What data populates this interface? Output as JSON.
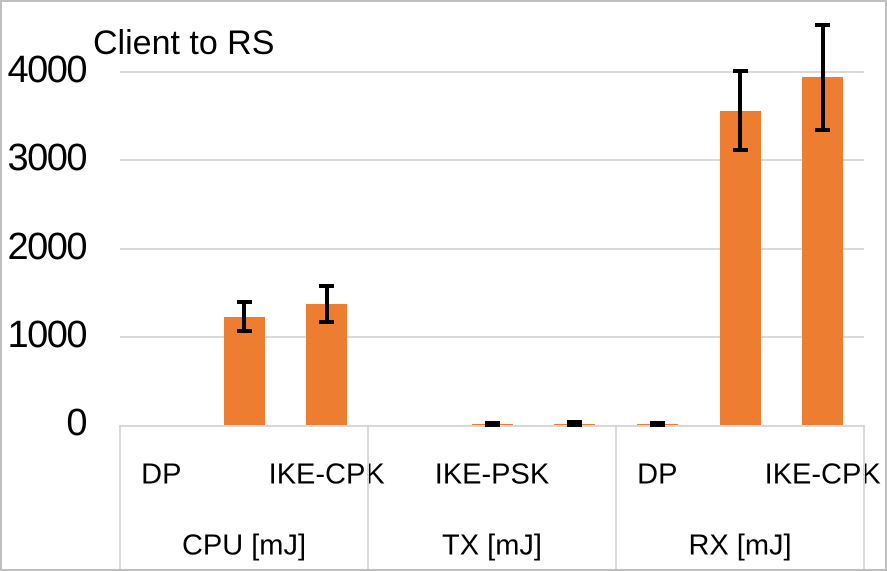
{
  "chart_data": {
    "type": "bar",
    "title": "Client to RS",
    "xlabel": "",
    "ylabel": "",
    "unit": "mJ",
    "ylim": [
      0,
      4600
    ],
    "yticks": [
      0,
      1000,
      2000,
      3000,
      4000
    ],
    "grid": true,
    "legend": false,
    "axis_label_interval": 2,
    "groups": [
      {
        "label": "CPU [mJ]",
        "items": [
          {
            "category": "DP",
            "value": 0,
            "error": 0,
            "label_visible": true
          },
          {
            "category": "IKE-PSK",
            "value": 1230,
            "error": 165,
            "label_visible": false
          },
          {
            "category": "IKE-CPK",
            "value": 1370,
            "error": 205,
            "label_visible": true
          }
        ]
      },
      {
        "label": "TX [mJ]",
        "items": [
          {
            "category": "DP",
            "value": 0,
            "error": 0,
            "label_visible": false
          },
          {
            "category": "IKE-PSK",
            "value": 10,
            "error": 15,
            "label_visible": true
          },
          {
            "category": "IKE-CPK",
            "value": 15,
            "error": 15,
            "label_visible": false
          }
        ]
      },
      {
        "label": "RX [mJ]",
        "items": [
          {
            "category": "DP",
            "value": 15,
            "error": 12,
            "label_visible": true
          },
          {
            "category": "IKE-PSK",
            "value": 3565,
            "error": 445,
            "label_visible": false
          },
          {
            "category": "IKE-CPK",
            "value": 3940,
            "error": 595,
            "label_visible": true
          }
        ]
      }
    ],
    "colors": {
      "bar": "#ED7D31",
      "error_bar": "#000000",
      "gridline": "#D9D9D9",
      "axis_line": "#D9D9D9",
      "text": "#000000",
      "chart_border": "#BFBFBF",
      "background": "#FFFFFF"
    }
  }
}
